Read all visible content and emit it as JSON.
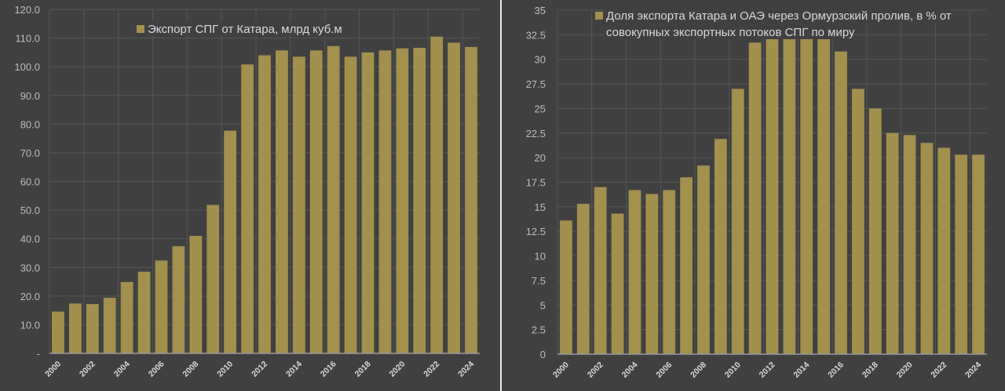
{
  "colors": {
    "background": "#404040",
    "bar": "#a38f4e",
    "grid": "#555555",
    "text": "#bdbdbd"
  },
  "chart_data": [
    {
      "type": "bar",
      "title": "",
      "xlabel": "",
      "ylabel": "",
      "legend": {
        "position": "top-center",
        "entries": [
          "Экспорт СПГ от Катара, млрд куб.м"
        ]
      },
      "grid": true,
      "ylim": [
        0,
        120
      ],
      "yticks": [
        "-",
        "10.0",
        "20.0",
        "30.0",
        "40.0",
        "50.0",
        "60.0",
        "70.0",
        "80.0",
        "90.0",
        "100.0",
        "110.0",
        "120.0"
      ],
      "categories": [
        "2000",
        "2001",
        "2002",
        "2003",
        "2004",
        "2005",
        "2006",
        "2007",
        "2008",
        "2009",
        "2010",
        "2011",
        "2012",
        "2013",
        "2014",
        "2015",
        "2016",
        "2017",
        "2018",
        "2019",
        "2020",
        "2021",
        "2022",
        "2023",
        "2024"
      ],
      "xtick_labels": [
        "2000",
        "2002",
        "2004",
        "2006",
        "2008",
        "2010",
        "2012",
        "2014",
        "2016",
        "2018",
        "2020",
        "2022",
        "2024"
      ],
      "series": [
        {
          "name": "Экспорт СПГ от Катара, млрд куб.м",
          "values": [
            14.6,
            17.4,
            17.2,
            19.4,
            24.9,
            28.5,
            32.4,
            37.4,
            41.0,
            51.8,
            77.7,
            100.8,
            104.0,
            105.7,
            103.5,
            105.7,
            107.2,
            103.5,
            105.0,
            105.7,
            106.4,
            106.6,
            110.5,
            108.4,
            106.9
          ]
        }
      ]
    },
    {
      "type": "bar",
      "title": "",
      "xlabel": "",
      "ylabel": "",
      "legend": {
        "position": "top-center",
        "entries": [
          "Доля экспорта Катара и ОАЭ через Ормурзский пролив, в % от",
          "совокупных экспортных потоков СПГ по миру"
        ]
      },
      "grid": true,
      "ylim": [
        0,
        35
      ],
      "yticks": [
        "0",
        "2.5",
        "5",
        "7.5",
        "10",
        "12.5",
        "15",
        "17.5",
        "20",
        "22.5",
        "25",
        "27.5",
        "30",
        "32.5",
        "35"
      ],
      "categories": [
        "2000",
        "2001",
        "2002",
        "2003",
        "2004",
        "2005",
        "2006",
        "2007",
        "2008",
        "2009",
        "2010",
        "2011",
        "2012",
        "2013",
        "2014",
        "2015",
        "2016",
        "2017",
        "2018",
        "2019",
        "2020",
        "2021",
        "2022",
        "2023",
        "2024"
      ],
      "xtick_labels": [
        "2000",
        "2002",
        "2004",
        "2006",
        "2008",
        "2010",
        "2012",
        "2014",
        "2016",
        "2018",
        "2020",
        "2022",
        "2024"
      ],
      "series": [
        {
          "name": "Доля экспорта Катара и ОАЭ через Ормурзский пролив, в % от совокупных экспортных потоков СПГ по миру",
          "values": [
            13.6,
            15.3,
            17.0,
            14.3,
            16.7,
            16.3,
            16.7,
            18.0,
            19.2,
            21.9,
            27.0,
            31.7,
            32.7,
            33.4,
            32.2,
            32.1,
            30.8,
            27.0,
            25.0,
            22.5,
            22.3,
            21.5,
            21.0,
            20.3,
            20.3
          ]
        }
      ]
    }
  ]
}
